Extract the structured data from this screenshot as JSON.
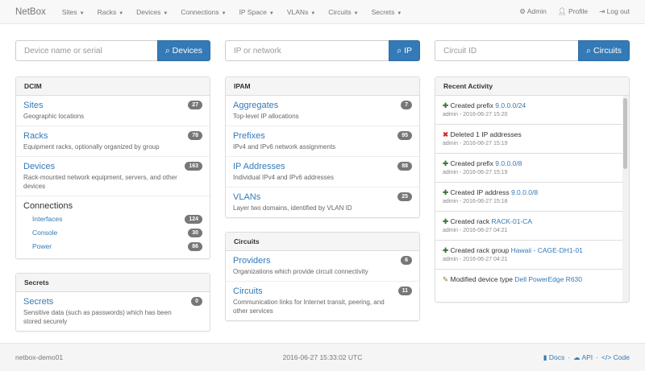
{
  "nav": {
    "brand": "NetBox",
    "menus": [
      "Sites",
      "Racks",
      "Devices",
      "Connections",
      "IP Space",
      "VLANs",
      "Circuits",
      "Secrets"
    ],
    "right": [
      {
        "icon": "gear-icon",
        "label": "Admin"
      },
      {
        "icon": "user-icon",
        "label": "Profile"
      },
      {
        "icon": "logout-icon",
        "label": "Log out"
      }
    ]
  },
  "search": [
    {
      "placeholder": "Device name or serial",
      "button": "Devices"
    },
    {
      "placeholder": "IP or network",
      "button": "IP"
    },
    {
      "placeholder": "Circuit ID",
      "button": "Circuits"
    }
  ],
  "dcim": {
    "title": "DCIM",
    "items": [
      {
        "label": "Sites",
        "desc": "Geographic locations",
        "count": "27"
      },
      {
        "label": "Racks",
        "desc": "Equipment racks, optionally organized by group",
        "count": "78"
      },
      {
        "label": "Devices",
        "desc": "Rack-mounted network equipment, servers, and other devices",
        "count": "163"
      }
    ],
    "connections": {
      "label": "Connections",
      "items": [
        {
          "label": "Interfaces",
          "count": "124"
        },
        {
          "label": "Console",
          "count": "30"
        },
        {
          "label": "Power",
          "count": "86"
        }
      ]
    }
  },
  "secrets": {
    "title": "Secrets",
    "items": [
      {
        "label": "Secrets",
        "desc": "Sensitive data (such as passwords) which has been stored securely",
        "count": "0"
      }
    ]
  },
  "ipam": {
    "title": "IPAM",
    "items": [
      {
        "label": "Aggregates",
        "desc": "Top-level IP allocations",
        "count": "7"
      },
      {
        "label": "Prefixes",
        "desc": "IPv4 and IPv6 network assignments",
        "count": "95"
      },
      {
        "label": "IP Addresses",
        "desc": "Individual IPv4 and IPv6 addresses",
        "count": "88"
      },
      {
        "label": "VLANs",
        "desc": "Layer two domains, identified by VLAN ID",
        "count": "25"
      }
    ]
  },
  "circuits": {
    "title": "Circuits",
    "items": [
      {
        "label": "Providers",
        "desc": "Organizations which provide circuit connectivity",
        "count": "6"
      },
      {
        "label": "Circuits",
        "desc": "Communication links for Internet transit, peering, and other services",
        "count": "11"
      }
    ]
  },
  "activity": {
    "title": "Recent Activity",
    "items": [
      {
        "icon": "plus-icon",
        "text": "Created prefix",
        "link": "9.0.0.0/24",
        "meta": "admin - 2016-06-27 15:20"
      },
      {
        "icon": "x-icon",
        "text": "Deleted 1 IP addresses",
        "link": "",
        "meta": "admin - 2016-06-27 15:19"
      },
      {
        "icon": "plus-icon",
        "text": "Created prefix",
        "link": "9.0.0.0/8",
        "meta": "admin - 2016-06-27 15:19"
      },
      {
        "icon": "plus-icon",
        "text": "Created IP address",
        "link": "9.0.0.0/8",
        "meta": "admin - 2016-06-27 15:18"
      },
      {
        "icon": "plus-icon",
        "text": "Created rack",
        "link": "RACK-01-CA",
        "meta": "admin - 2016-06-27 04:21"
      },
      {
        "icon": "plus-icon",
        "text": "Created rack group",
        "link": "Hawaii - CAGE-DH1-01",
        "meta": "admin - 2016-06-27 04:21"
      },
      {
        "icon": "pencil-icon",
        "text": "Modified device type",
        "link": "Dell PowerEdge R630",
        "meta": ""
      }
    ]
  },
  "footer": {
    "host": "netbox-demo01",
    "time": "2016-06-27 15:33:02 UTC",
    "links": [
      "Docs",
      "API",
      "Code"
    ]
  }
}
